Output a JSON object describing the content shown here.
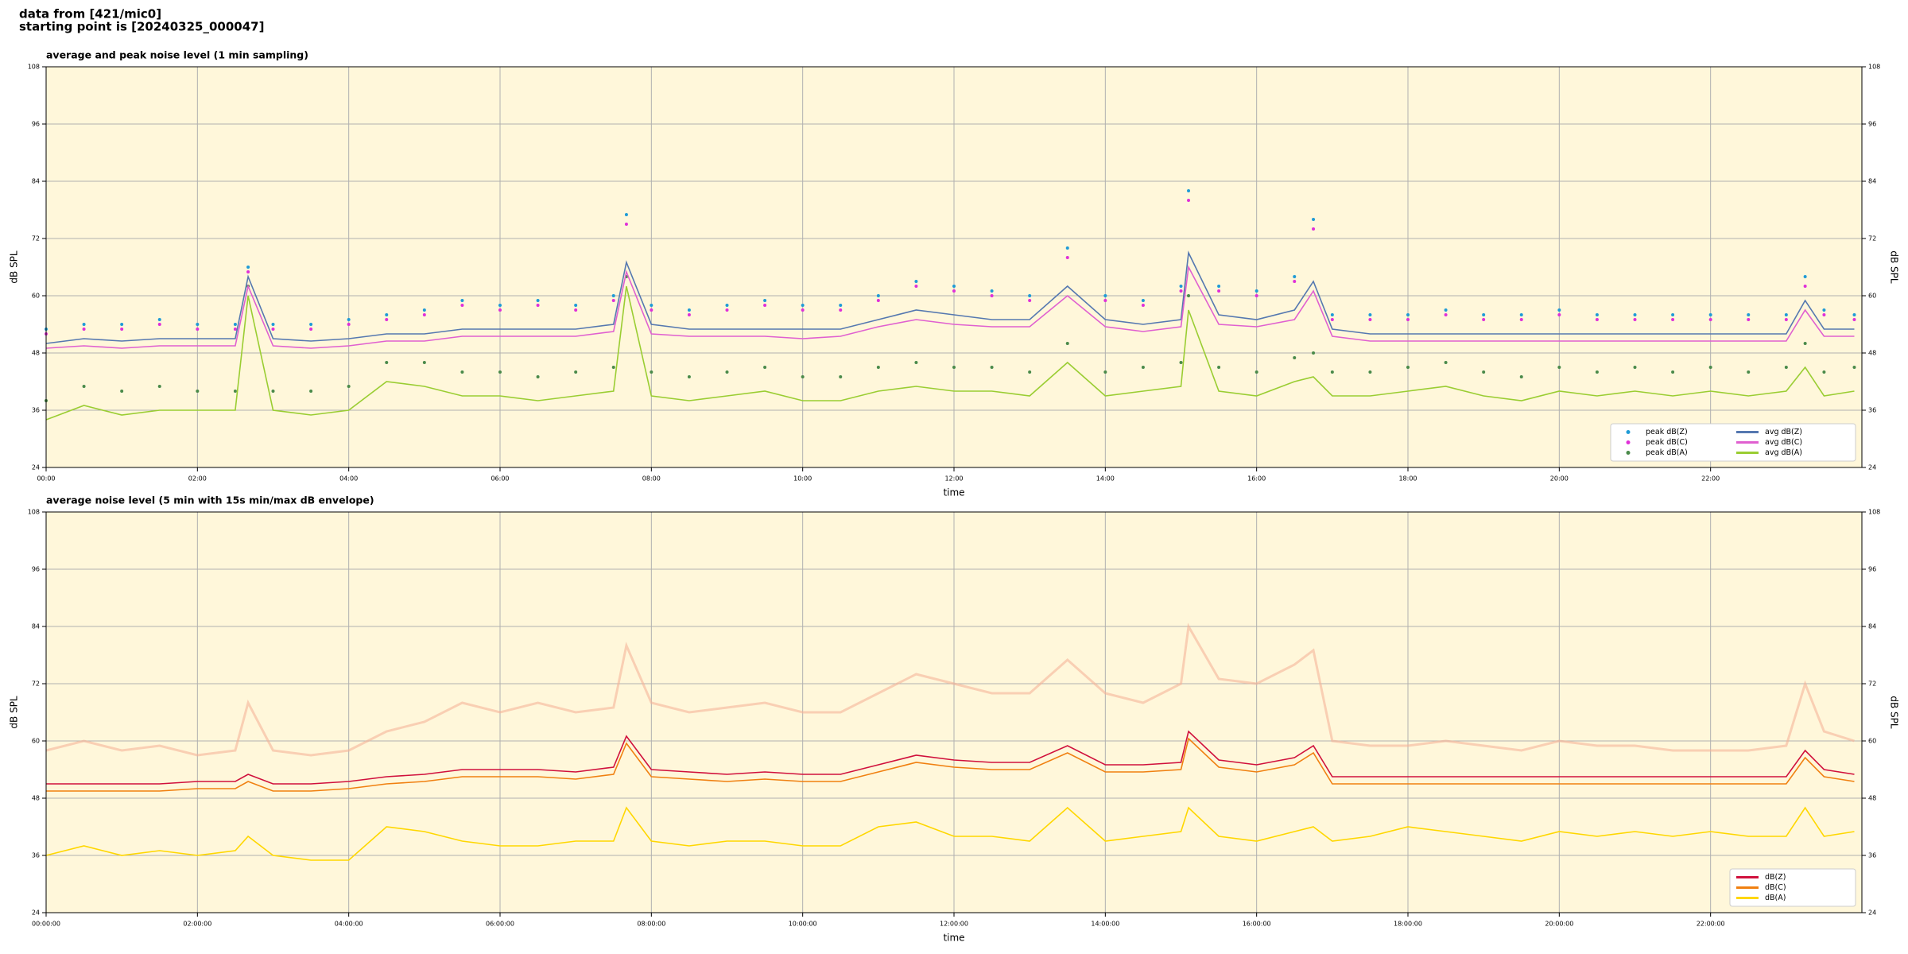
{
  "header": [
    "data from [421/mic0]",
    "starting point is [20240325_000047]"
  ],
  "chart_data": [
    {
      "type": "line",
      "title": "average and peak noise level (1 min sampling)",
      "xlabel": "time",
      "ylabel": "dB SPL",
      "y2label": "dB SPL",
      "facecolor": "#fff7da",
      "grid": true,
      "legend": "lower right",
      "legend_columns": 2,
      "xlim": [
        0,
        24
      ],
      "ylim": [
        24,
        108
      ],
      "y2lim": [
        24,
        108
      ],
      "yticks": [
        24,
        36,
        48,
        60,
        72,
        84,
        96,
        108
      ],
      "y2ticks": [
        24,
        36,
        48,
        60,
        72,
        84,
        96,
        108
      ],
      "xticks": [
        {
          "value": 0,
          "label": "00:00"
        },
        {
          "value": 2,
          "label": "02:00"
        },
        {
          "value": 4,
          "label": "04:00"
        },
        {
          "value": 6,
          "label": "06:00"
        },
        {
          "value": 8,
          "label": "08:00"
        },
        {
          "value": 10,
          "label": "10:00"
        },
        {
          "value": 12,
          "label": "12:00"
        },
        {
          "value": 14,
          "label": "14:00"
        },
        {
          "value": 16,
          "label": "16:00"
        },
        {
          "value": 18,
          "label": "18:00"
        },
        {
          "value": 20,
          "label": "20:00"
        },
        {
          "value": 22,
          "label": "22:00"
        }
      ],
      "x": [
        0,
        0.5,
        1,
        1.5,
        2,
        2.5,
        2.67,
        3,
        3.5,
        4,
        4.5,
        5,
        5.5,
        6,
        6.5,
        7,
        7.5,
        7.67,
        8,
        8.5,
        9,
        9.5,
        10,
        10.5,
        11,
        11.5,
        12,
        12.5,
        13,
        13.5,
        14,
        14.5,
        15,
        15.1,
        15.5,
        16,
        16.5,
        16.75,
        17,
        17.5,
        18,
        18.5,
        19,
        19.5,
        20,
        20.5,
        21,
        21.5,
        22,
        22.5,
        23,
        23.25,
        23.5,
        23.9
      ],
      "series": [
        {
          "name": "peak dB(Z)",
          "type": "scatter",
          "color": "#1f9bd6",
          "values": [
            53,
            54,
            54,
            55,
            54,
            54,
            66,
            54,
            54,
            55,
            56,
            57,
            59,
            58,
            59,
            58,
            60,
            77,
            58,
            57,
            58,
            59,
            58,
            58,
            60,
            63,
            62,
            61,
            60,
            70,
            60,
            59,
            62,
            82,
            62,
            61,
            64,
            76,
            56,
            56,
            56,
            57,
            56,
            56,
            57,
            56,
            56,
            56,
            56,
            56,
            56,
            64,
            57,
            56
          ]
        },
        {
          "name": "peak dB(C)",
          "type": "scatter",
          "color": "#e030d8",
          "values": [
            52,
            53,
            53,
            54,
            53,
            53,
            65,
            53,
            53,
            54,
            55,
            56,
            58,
            57,
            58,
            57,
            59,
            75,
            57,
            56,
            57,
            58,
            57,
            57,
            59,
            62,
            61,
            60,
            59,
            68,
            59,
            58,
            61,
            80,
            61,
            60,
            63,
            74,
            55,
            55,
            55,
            56,
            55,
            55,
            56,
            55,
            55,
            55,
            55,
            55,
            55,
            62,
            56,
            55
          ]
        },
        {
          "name": "peak dB(A)",
          "type": "scatter",
          "color": "#4a8a4a",
          "values": [
            38,
            41,
            40,
            41,
            40,
            40,
            62,
            40,
            40,
            41,
            46,
            46,
            44,
            44,
            43,
            44,
            45,
            64,
            44,
            43,
            44,
            45,
            43,
            43,
            45,
            46,
            45,
            45,
            44,
            50,
            44,
            45,
            46,
            60,
            45,
            44,
            47,
            48,
            44,
            44,
            45,
            46,
            44,
            43,
            45,
            44,
            45,
            44,
            45,
            44,
            45,
            50,
            44,
            45
          ]
        },
        {
          "name": "avg dB(Z)",
          "type": "line",
          "color": "#5578b0",
          "values": [
            50,
            51,
            50.5,
            51,
            51,
            51,
            64,
            51,
            50.5,
            51,
            52,
            52,
            53,
            53,
            53,
            53,
            54,
            67,
            54,
            53,
            53,
            53,
            53,
            53,
            55,
            57,
            56,
            55,
            55,
            62,
            55,
            54,
            55,
            69,
            56,
            55,
            57,
            63,
            53,
            52,
            52,
            52,
            52,
            52,
            52,
            52,
            52,
            52,
            52,
            52,
            52,
            59,
            53,
            53
          ]
        },
        {
          "name": "avg dB(C)",
          "type": "line",
          "color": "#e060d0",
          "values": [
            49,
            49.5,
            49,
            49.5,
            49.5,
            49.5,
            62,
            49.5,
            49,
            49.5,
            50.5,
            50.5,
            51.5,
            51.5,
            51.5,
            51.5,
            52.5,
            65,
            52,
            51.5,
            51.5,
            51.5,
            51,
            51.5,
            53.5,
            55,
            54,
            53.5,
            53.5,
            60,
            53.5,
            52.5,
            53.5,
            66,
            54,
            53.5,
            55,
            61,
            51.5,
            50.5,
            50.5,
            50.5,
            50.5,
            50.5,
            50.5,
            50.5,
            50.5,
            50.5,
            50.5,
            50.5,
            50.5,
            57,
            51.5,
            51.5
          ]
        },
        {
          "name": "avg dB(A)",
          "type": "line",
          "color": "#9acd32",
          "values": [
            34,
            37,
            35,
            36,
            36,
            36,
            60,
            36,
            35,
            36,
            42,
            41,
            39,
            39,
            38,
            39,
            40,
            62,
            39,
            38,
            39,
            40,
            38,
            38,
            40,
            41,
            40,
            40,
            39,
            46,
            39,
            40,
            41,
            57,
            40,
            39,
            42,
            43,
            39,
            39,
            40,
            41,
            39,
            38,
            40,
            39,
            40,
            39,
            40,
            39,
            40,
            45,
            39,
            40
          ]
        }
      ]
    },
    {
      "type": "line",
      "title": "average noise level (5 min with 15s min/max dB envelope)",
      "xlabel": "time",
      "ylabel": "dB SPL",
      "y2label": "dB SPL",
      "facecolor": "#fff7da",
      "grid": true,
      "legend": "lower right",
      "legend_columns": 1,
      "xlim": [
        0,
        24
      ],
      "ylim": [
        24,
        108
      ],
      "y2lim": [
        24,
        108
      ],
      "yticks": [
        24,
        36,
        48,
        60,
        72,
        84,
        96,
        108
      ],
      "y2ticks": [
        24,
        36,
        48,
        60,
        72,
        84,
        96,
        108
      ],
      "xticks": [
        {
          "value": 0,
          "label": "00:00:00"
        },
        {
          "value": 2,
          "label": "02:00:00"
        },
        {
          "value": 4,
          "label": "04:00:00"
        },
        {
          "value": 6,
          "label": "06:00:00"
        },
        {
          "value": 8,
          "label": "08:00:00"
        },
        {
          "value": 10,
          "label": "10:00:00"
        },
        {
          "value": 12,
          "label": "12:00:00"
        },
        {
          "value": 14,
          "label": "14:00:00"
        },
        {
          "value": 16,
          "label": "16:00:00"
        },
        {
          "value": 18,
          "label": "18:00:00"
        },
        {
          "value": 20,
          "label": "20:00:00"
        },
        {
          "value": 22,
          "label": "22:00:00"
        }
      ],
      "x": [
        0,
        0.5,
        1,
        1.5,
        2,
        2.5,
        2.67,
        3,
        3.5,
        4,
        4.5,
        5,
        5.5,
        6,
        6.5,
        7,
        7.5,
        7.67,
        8,
        8.5,
        9,
        9.5,
        10,
        10.5,
        11,
        11.5,
        12,
        12.5,
        13,
        13.5,
        14,
        14.5,
        15,
        15.1,
        15.5,
        16,
        16.5,
        16.75,
        17,
        17.5,
        18,
        18.5,
        19,
        19.5,
        20,
        20.5,
        21,
        21.5,
        22,
        22.5,
        23,
        23.25,
        23.5,
        23.9
      ],
      "series": [
        {
          "type": "envelope",
          "color": "#f5b49a",
          "values": [
            58,
            60,
            58,
            59,
            57,
            58,
            68,
            58,
            57,
            58,
            62,
            64,
            68,
            66,
            68,
            66,
            67,
            80,
            68,
            66,
            67,
            68,
            66,
            66,
            70,
            74,
            72,
            70,
            70,
            77,
            70,
            68,
            72,
            84,
            73,
            72,
            76,
            79,
            60,
            59,
            59,
            60,
            59,
            58,
            60,
            59,
            59,
            58,
            58,
            58,
            59,
            72,
            62,
            60
          ]
        },
        {
          "name": "dB(Z)",
          "type": "line",
          "color": "#d0103c",
          "values": [
            51,
            51,
            51,
            51,
            51.5,
            51.5,
            53,
            51,
            51,
            51.5,
            52.5,
            53,
            54,
            54,
            54,
            53.5,
            54.5,
            61,
            54,
            53.5,
            53,
            53.5,
            53,
            53,
            55,
            57,
            56,
            55.5,
            55.5,
            59,
            55,
            55,
            55.5,
            62,
            56,
            55,
            56.5,
            59,
            52.5,
            52.5,
            52.5,
            52.5,
            52.5,
            52.5,
            52.5,
            52.5,
            52.5,
            52.5,
            52.5,
            52.5,
            52.5,
            58,
            54,
            53
          ]
        },
        {
          "name": "dB(C)",
          "type": "line",
          "color": "#f08010",
          "values": [
            49.5,
            49.5,
            49.5,
            49.5,
            50,
            50,
            51.5,
            49.5,
            49.5,
            50,
            51,
            51.5,
            52.5,
            52.5,
            52.5,
            52,
            53,
            59.5,
            52.5,
            52,
            51.5,
            52,
            51.5,
            51.5,
            53.5,
            55.5,
            54.5,
            54,
            54,
            57.5,
            53.5,
            53.5,
            54,
            60.5,
            54.5,
            53.5,
            55,
            57.5,
            51,
            51,
            51,
            51,
            51,
            51,
            51,
            51,
            51,
            51,
            51,
            51,
            51,
            56.5,
            52.5,
            51.5
          ]
        },
        {
          "name": "dB(A)",
          "type": "line",
          "color": "#ffd700",
          "values": [
            36,
            38,
            36,
            37,
            36,
            37,
            40,
            36,
            35,
            35,
            42,
            41,
            39,
            38,
            38,
            39,
            39,
            46,
            39,
            38,
            39,
            39,
            38,
            38,
            42,
            43,
            40,
            40,
            39,
            46,
            39,
            40,
            41,
            46,
            40,
            39,
            41,
            42,
            39,
            40,
            42,
            41,
            40,
            39,
            41,
            40,
            41,
            40,
            41,
            40,
            40,
            46,
            40,
            41
          ]
        }
      ]
    }
  ]
}
